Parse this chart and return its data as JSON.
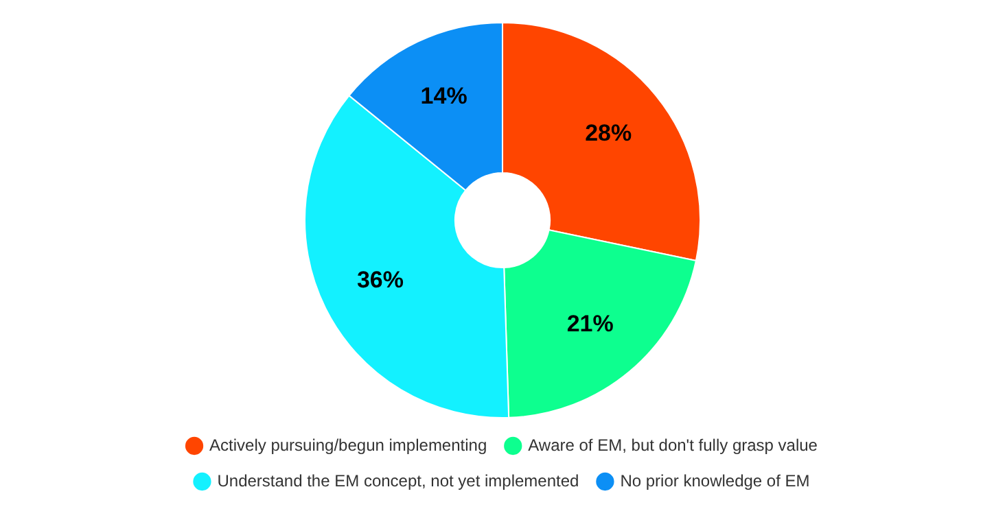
{
  "chart_data": {
    "type": "donut",
    "categories": [
      "Actively pursuing/begun implementing",
      "Aware of EM, but don't fully grasp value",
      "Understand the EM concept, not yet implemented",
      "No prior knowledge of EM"
    ],
    "values": [
      28,
      21,
      36,
      14
    ],
    "colors": [
      "#ff4500",
      "#0dff8f",
      "#13f1ff",
      "#0c8ff5"
    ],
    "value_labels": [
      "28%",
      "21%",
      "36%",
      "14%"
    ],
    "legend": "bottom"
  }
}
